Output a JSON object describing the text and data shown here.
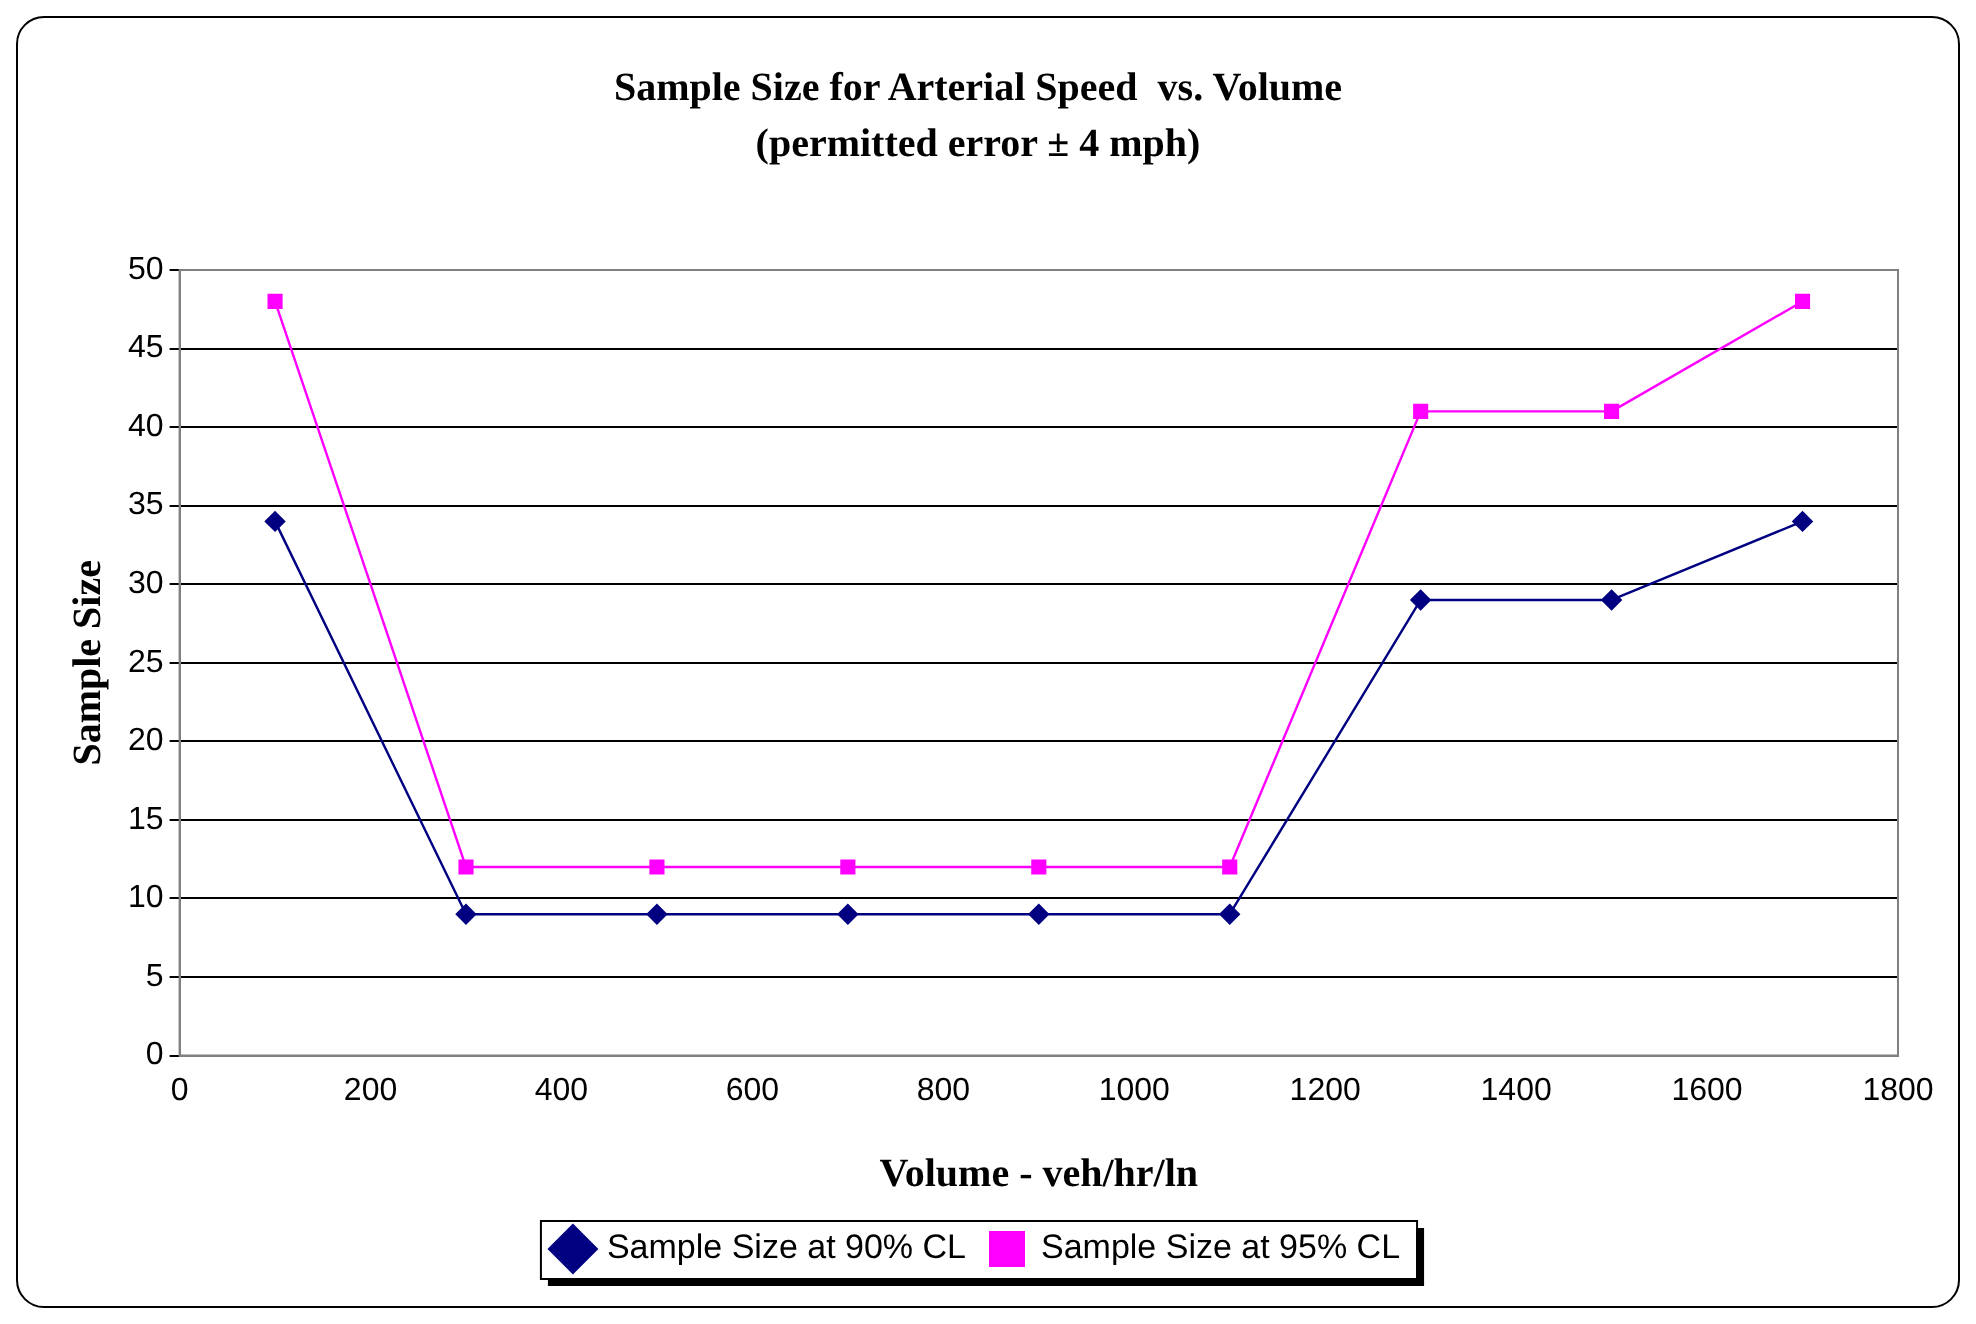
{
  "chart_data": {
    "type": "line",
    "title": "Sample Size for Arterial Speed  vs. Volume",
    "subtitle": "(permitted error ± 4 mph)",
    "xlabel": "Volume - veh/hr/ln",
    "ylabel": "Sample Size",
    "x": [
      100,
      300,
      500,
      700,
      900,
      1100,
      1300,
      1500,
      1700
    ],
    "series": [
      {
        "name": "Sample Size at 90% CL",
        "color": "#000080",
        "marker": "diamond",
        "values": [
          34,
          9,
          9,
          9,
          9,
          9,
          29,
          29,
          34
        ]
      },
      {
        "name": "Sample Size at 95% CL",
        "color": "#ff00ff",
        "marker": "square",
        "values": [
          48,
          12,
          12,
          12,
          12,
          12,
          41,
          41,
          48
        ]
      }
    ],
    "xlim": [
      0,
      1800
    ],
    "xticks": [
      0,
      200,
      400,
      600,
      800,
      1000,
      1200,
      1400,
      1600,
      1800
    ],
    "ylim": [
      0,
      50
    ],
    "yticks": [
      0,
      5,
      10,
      15,
      20,
      25,
      30,
      35,
      40,
      45,
      50
    ],
    "grid": "y",
    "legend": "bottom",
    "line_style": "solid"
  }
}
